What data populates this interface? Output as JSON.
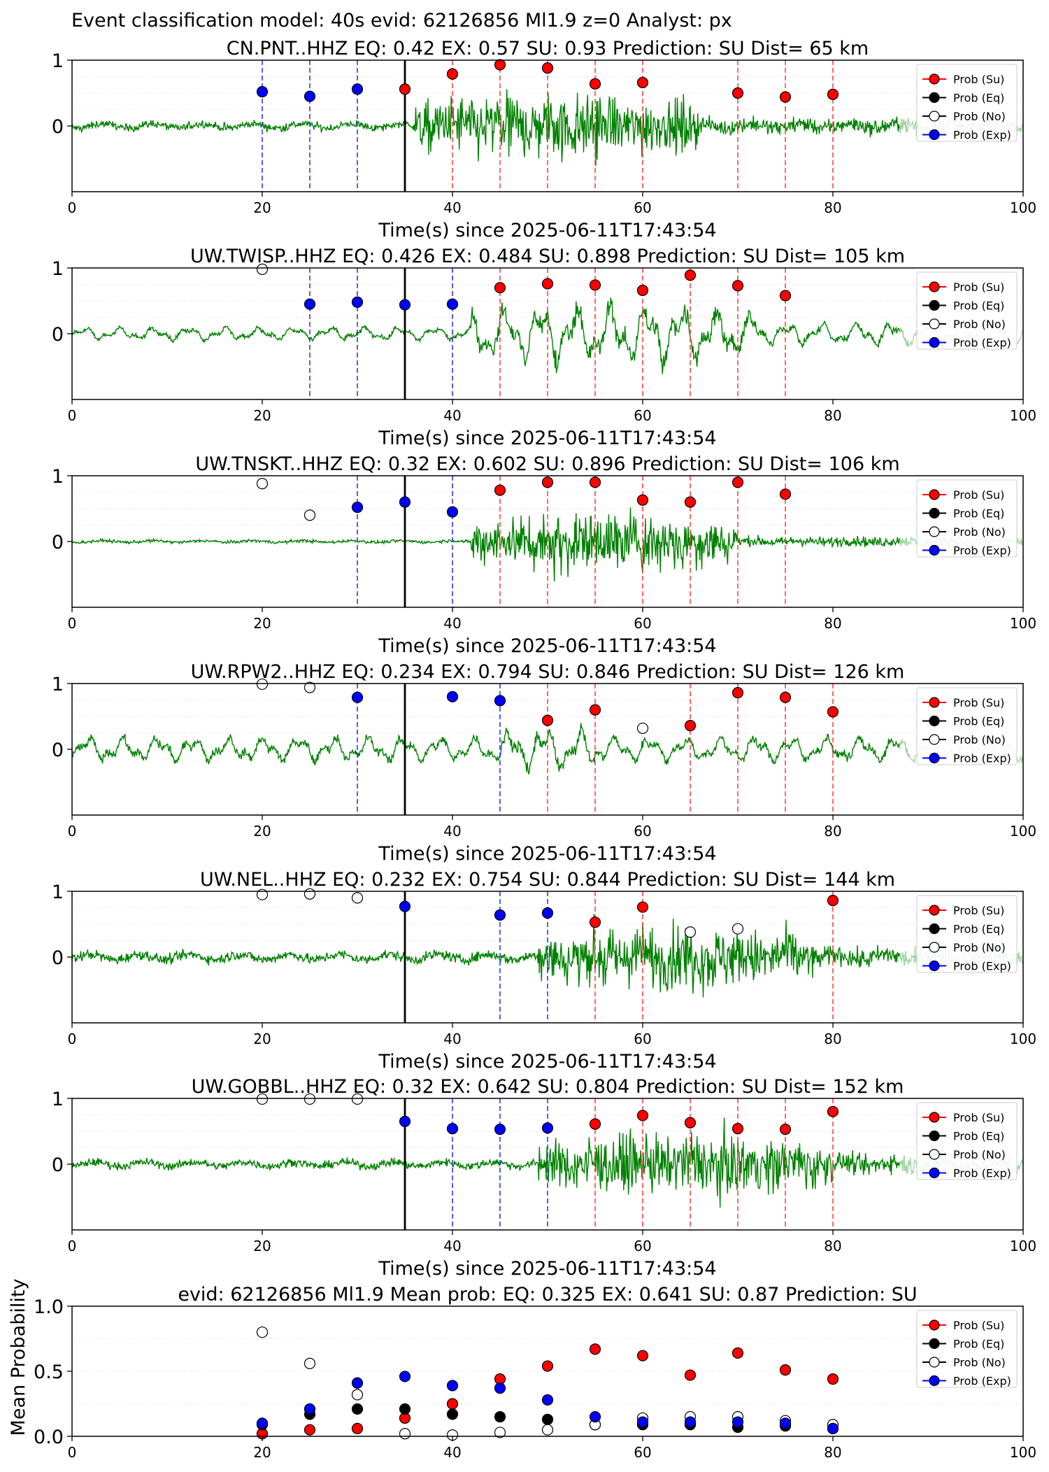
{
  "figure_title": "Event classification model: 40s evid: 62126856 Ml1.9 z=0 Analyst: px",
  "time_axis_label": "Time(s) since 2025-06-11T17:43:54",
  "legend_entries": [
    "Prob (Su)",
    "Prob (Eq)",
    "Prob (No)",
    "Prob (Exp)"
  ],
  "colors": {
    "su": "#ff0000",
    "eq": "#000000",
    "no": "#ffffff",
    "exp": "#0000ff",
    "trace": "#008000",
    "su_line": "#ff4444",
    "exp_line": "#3333ff"
  },
  "chart_data": [
    {
      "type": "line",
      "title": "CN.PNT..HHZ   EQ: 0.42  EX: 0.57  SU: 0.93   Prediction: SU    Dist= 65 km",
      "xlabel": "Time(s) since 2025-06-11T17:43:54",
      "xlim": [
        0,
        100
      ],
      "ylim": [
        -1,
        1
      ],
      "xticks": [
        "0",
        "20",
        "40",
        "60",
        "80",
        "100"
      ],
      "yticks": [
        "0",
        "1"
      ],
      "pick_time": 35,
      "signal_onset": 36,
      "trace_profile": {
        "pre_amp": 0.08,
        "post_amp": 0.8,
        "post_end": 66,
        "tail_amp": 0.15,
        "style": "noise"
      },
      "exp_lines": [
        20,
        25,
        30
      ],
      "su_lines": [
        40,
        45,
        50,
        55,
        60,
        70,
        75,
        80
      ],
      "points": [
        {
          "x": 20,
          "y": 0.52,
          "class": "exp"
        },
        {
          "x": 25,
          "y": 0.45,
          "class": "exp"
        },
        {
          "x": 30,
          "y": 0.56,
          "class": "exp"
        },
        {
          "x": 35,
          "y": 0.56,
          "class": "su"
        },
        {
          "x": 40,
          "y": 0.79,
          "class": "su"
        },
        {
          "x": 45,
          "y": 0.93,
          "class": "su"
        },
        {
          "x": 50,
          "y": 0.88,
          "class": "su"
        },
        {
          "x": 55,
          "y": 0.64,
          "class": "su"
        },
        {
          "x": 60,
          "y": 0.66,
          "class": "su"
        },
        {
          "x": 70,
          "y": 0.5,
          "class": "su"
        },
        {
          "x": 75,
          "y": 0.44,
          "class": "su"
        },
        {
          "x": 80,
          "y": 0.48,
          "class": "su"
        }
      ]
    },
    {
      "type": "line",
      "title": "UW.TWISP..HHZ   EQ: 0.426  EX: 0.484  SU: 0.898   Prediction: SU    Dist= 105 km",
      "xlabel": "Time(s) since 2025-06-11T17:43:54",
      "xlim": [
        0,
        100
      ],
      "ylim": [
        -1,
        1
      ],
      "xticks": [
        "0",
        "20",
        "40",
        "60",
        "80",
        "100"
      ],
      "yticks": [
        "0",
        "1"
      ],
      "pick_time": 35,
      "signal_onset": 42,
      "trace_profile": {
        "pre_amp": 0.12,
        "post_amp": 0.65,
        "post_end": 72,
        "tail_amp": 0.2,
        "style": "wavy"
      },
      "exp_lines": [
        25,
        30,
        40
      ],
      "su_lines": [
        45,
        50,
        55,
        60,
        65,
        70,
        75
      ],
      "points": [
        {
          "x": 20,
          "y": 0.98,
          "class": "no"
        },
        {
          "x": 25,
          "y": 0.45,
          "class": "exp"
        },
        {
          "x": 30,
          "y": 0.48,
          "class": "exp"
        },
        {
          "x": 35,
          "y": 0.44,
          "class": "exp"
        },
        {
          "x": 40,
          "y": 0.45,
          "class": "exp"
        },
        {
          "x": 45,
          "y": 0.7,
          "class": "su"
        },
        {
          "x": 50,
          "y": 0.76,
          "class": "su"
        },
        {
          "x": 55,
          "y": 0.74,
          "class": "su"
        },
        {
          "x": 60,
          "y": 0.66,
          "class": "su"
        },
        {
          "x": 65,
          "y": 0.89,
          "class": "su"
        },
        {
          "x": 70,
          "y": 0.73,
          "class": "su"
        },
        {
          "x": 75,
          "y": 0.58,
          "class": "su"
        }
      ]
    },
    {
      "type": "line",
      "title": "UW.TNSKT..HHZ   EQ: 0.32  EX: 0.602  SU: 0.896   Prediction: SU    Dist= 106 km",
      "xlabel": "Time(s) since 2025-06-11T17:43:54",
      "xlim": [
        0,
        100
      ],
      "ylim": [
        -1,
        1
      ],
      "xticks": [
        "0",
        "20",
        "40",
        "60",
        "80",
        "100"
      ],
      "yticks": [
        "0",
        "1"
      ],
      "pick_time": 35,
      "signal_onset": 42,
      "trace_profile": {
        "pre_amp": 0.03,
        "post_amp": 0.75,
        "post_end": 70,
        "tail_amp": 0.1,
        "style": "noise"
      },
      "exp_lines": [
        30,
        40
      ],
      "su_lines": [
        45,
        50,
        55,
        60,
        65,
        70,
        75
      ],
      "points": [
        {
          "x": 20,
          "y": 0.88,
          "class": "no"
        },
        {
          "x": 25,
          "y": 0.4,
          "class": "no"
        },
        {
          "x": 30,
          "y": 0.52,
          "class": "exp"
        },
        {
          "x": 35,
          "y": 0.6,
          "class": "exp"
        },
        {
          "x": 40,
          "y": 0.45,
          "class": "exp"
        },
        {
          "x": 45,
          "y": 0.78,
          "class": "su"
        },
        {
          "x": 50,
          "y": 0.9,
          "class": "su"
        },
        {
          "x": 55,
          "y": 0.9,
          "class": "su"
        },
        {
          "x": 60,
          "y": 0.63,
          "class": "su"
        },
        {
          "x": 65,
          "y": 0.6,
          "class": "su"
        },
        {
          "x": 70,
          "y": 0.9,
          "class": "su"
        },
        {
          "x": 75,
          "y": 0.72,
          "class": "su"
        }
      ]
    },
    {
      "type": "line",
      "title": "UW.RPW2..HHZ   EQ: 0.234  EX: 0.794  SU: 0.846   Prediction: SU    Dist= 126 km",
      "xlabel": "Time(s) since 2025-06-11T17:43:54",
      "xlim": [
        0,
        100
      ],
      "ylim": [
        -1,
        1
      ],
      "xticks": [
        "0",
        "20",
        "40",
        "60",
        "80",
        "100"
      ],
      "yticks": [
        "0",
        "1"
      ],
      "pick_time": 35,
      "signal_onset": 45,
      "trace_profile": {
        "pre_amp": 0.22,
        "post_amp": 0.45,
        "post_end": 55,
        "tail_amp": 0.22,
        "style": "wavy"
      },
      "exp_lines": [
        30,
        45
      ],
      "su_lines": [
        50,
        55,
        65,
        70,
        75,
        80
      ],
      "points": [
        {
          "x": 20,
          "y": 0.99,
          "class": "no"
        },
        {
          "x": 25,
          "y": 0.94,
          "class": "no"
        },
        {
          "x": 30,
          "y": 0.79,
          "class": "exp"
        },
        {
          "x": 40,
          "y": 0.8,
          "class": "exp"
        },
        {
          "x": 45,
          "y": 0.74,
          "class": "exp"
        },
        {
          "x": 50,
          "y": 0.44,
          "class": "su"
        },
        {
          "x": 55,
          "y": 0.6,
          "class": "su"
        },
        {
          "x": 60,
          "y": 0.32,
          "class": "no"
        },
        {
          "x": 65,
          "y": 0.36,
          "class": "su"
        },
        {
          "x": 70,
          "y": 0.86,
          "class": "su"
        },
        {
          "x": 75,
          "y": 0.79,
          "class": "su"
        },
        {
          "x": 80,
          "y": 0.57,
          "class": "su"
        }
      ]
    },
    {
      "type": "line",
      "title": "UW.NEL..HHZ   EQ: 0.232  EX: 0.754  SU: 0.844   Prediction: SU    Dist= 144 km",
      "xlabel": "Time(s) since 2025-06-11T17:43:54",
      "xlim": [
        0,
        100
      ],
      "ylim": [
        -1,
        1
      ],
      "xticks": [
        "0",
        "20",
        "40",
        "60",
        "80",
        "100"
      ],
      "yticks": [
        "0",
        "1"
      ],
      "pick_time": 35,
      "signal_onset": 49,
      "trace_profile": {
        "pre_amp": 0.1,
        "post_amp": 0.75,
        "post_end": 78,
        "tail_amp": 0.2,
        "style": "noise"
      },
      "exp_lines": [
        45,
        50
      ],
      "su_lines": [
        55,
        60,
        80
      ],
      "points": [
        {
          "x": 20,
          "y": 0.95,
          "class": "no"
        },
        {
          "x": 25,
          "y": 0.96,
          "class": "no"
        },
        {
          "x": 30,
          "y": 0.9,
          "class": "no"
        },
        {
          "x": 35,
          "y": 0.77,
          "class": "exp"
        },
        {
          "x": 45,
          "y": 0.64,
          "class": "exp"
        },
        {
          "x": 50,
          "y": 0.67,
          "class": "exp"
        },
        {
          "x": 55,
          "y": 0.53,
          "class": "su"
        },
        {
          "x": 60,
          "y": 0.76,
          "class": "su"
        },
        {
          "x": 65,
          "y": 0.38,
          "class": "no"
        },
        {
          "x": 70,
          "y": 0.43,
          "class": "no"
        },
        {
          "x": 80,
          "y": 0.86,
          "class": "su"
        }
      ]
    },
    {
      "type": "line",
      "title": "UW.GOBBL..HHZ   EQ: 0.32  EX: 0.642  SU: 0.804   Prediction: SU    Dist= 152 km",
      "xlabel": "Time(s) since 2025-06-11T17:43:54",
      "xlim": [
        0,
        100
      ],
      "ylim": [
        -1,
        1
      ],
      "xticks": [
        "0",
        "20",
        "40",
        "60",
        "80",
        "100"
      ],
      "yticks": [
        "0",
        "1"
      ],
      "pick_time": 35,
      "signal_onset": 49,
      "trace_profile": {
        "pre_amp": 0.08,
        "post_amp": 0.7,
        "post_end": 80,
        "tail_amp": 0.2,
        "style": "noise"
      },
      "exp_lines": [
        40,
        45,
        50
      ],
      "su_lines": [
        55,
        60,
        65,
        70,
        75,
        80
      ],
      "points": [
        {
          "x": 20,
          "y": 0.99,
          "class": "no"
        },
        {
          "x": 25,
          "y": 0.99,
          "class": "no"
        },
        {
          "x": 30,
          "y": 0.99,
          "class": "no"
        },
        {
          "x": 35,
          "y": 0.65,
          "class": "exp"
        },
        {
          "x": 40,
          "y": 0.54,
          "class": "exp"
        },
        {
          "x": 45,
          "y": 0.53,
          "class": "exp"
        },
        {
          "x": 50,
          "y": 0.55,
          "class": "exp"
        },
        {
          "x": 55,
          "y": 0.61,
          "class": "su"
        },
        {
          "x": 60,
          "y": 0.74,
          "class": "su"
        },
        {
          "x": 65,
          "y": 0.63,
          "class": "su"
        },
        {
          "x": 70,
          "y": 0.54,
          "class": "su"
        },
        {
          "x": 75,
          "y": 0.53,
          "class": "su"
        },
        {
          "x": 80,
          "y": 0.8,
          "class": "su"
        }
      ]
    },
    {
      "type": "scatter",
      "title": "evid: 62126856  Ml1.9   Mean prob:   EQ: 0.325  EX: 0.641  SU: 0.87   Prediction: SU",
      "ylabel": "Mean Probability",
      "xlim": [
        0,
        100
      ],
      "ylim": [
        0,
        1
      ],
      "xticks": [
        "0",
        "20",
        "40",
        "60",
        "80",
        "100"
      ],
      "yticks": [
        "0.0",
        "0.5",
        "1.0"
      ],
      "x": [
        20,
        25,
        30,
        35,
        40,
        45,
        50,
        55,
        60,
        65,
        70,
        75,
        80
      ],
      "series": [
        {
          "name": "Prob (Su)",
          "class": "su",
          "values": [
            0.02,
            0.05,
            0.06,
            0.14,
            0.25,
            0.44,
            0.54,
            0.67,
            0.62,
            0.47,
            0.64,
            0.51,
            0.44
          ]
        },
        {
          "name": "Prob (Eq)",
          "class": "eq",
          "values": [
            0.09,
            0.17,
            0.21,
            0.21,
            0.17,
            0.15,
            0.13,
            0.09,
            0.09,
            0.09,
            0.07,
            0.08,
            0.06
          ]
        },
        {
          "name": "Prob (No)",
          "class": "no",
          "values": [
            0.8,
            0.56,
            0.32,
            0.02,
            0.01,
            0.03,
            0.05,
            0.09,
            0.14,
            0.15,
            0.15,
            0.12,
            0.09
          ]
        },
        {
          "name": "Prob (Exp)",
          "class": "exp",
          "values": [
            0.1,
            0.21,
            0.41,
            0.46,
            0.39,
            0.37,
            0.28,
            0.15,
            0.11,
            0.11,
            0.11,
            0.1,
            0.06
          ]
        }
      ]
    }
  ]
}
